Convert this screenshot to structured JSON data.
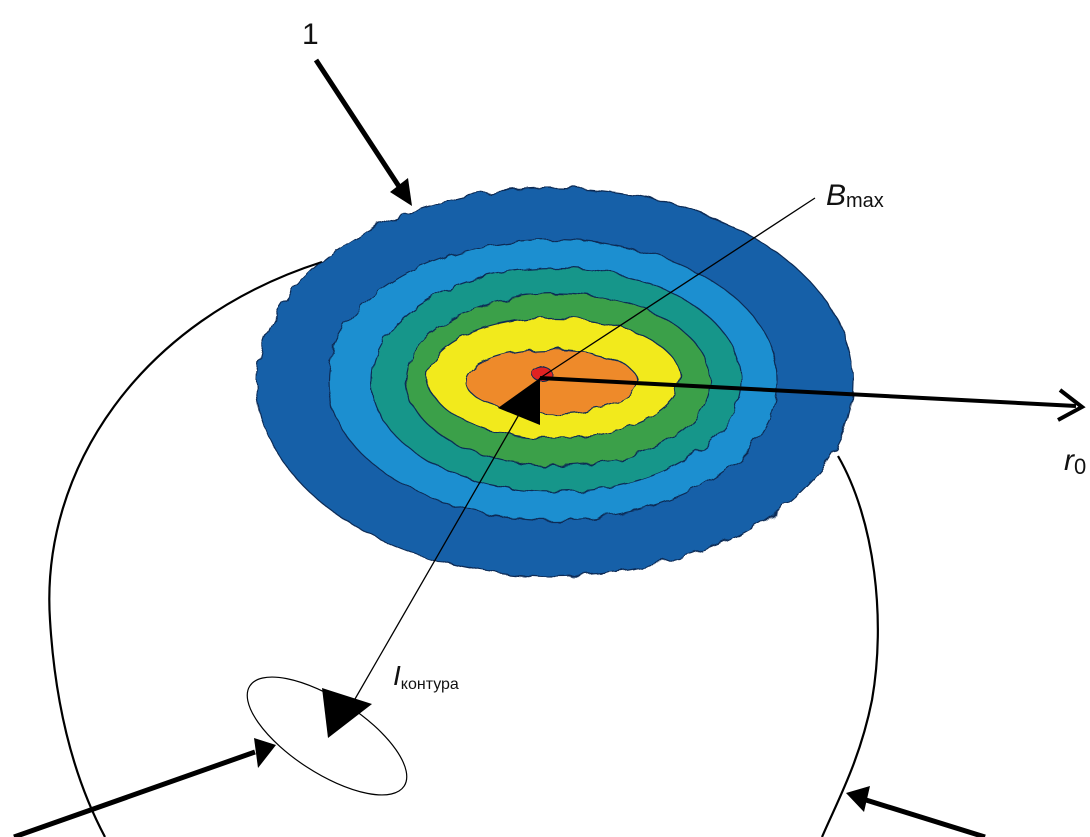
{
  "labels": {
    "marker_1": "1",
    "b_main": "B",
    "b_sub": "max",
    "i_main": "I",
    "i_sub": "контура",
    "r_main": "r",
    "r_sub": "0"
  },
  "colors": {
    "contour_levels": [
      "#1560a8",
      "#1e8fd0",
      "#15968a",
      "#3aa048",
      "#f2ea1a",
      "#ee8a2c",
      "#e02020"
    ],
    "line": "#000000",
    "background": "#ffffff"
  }
}
